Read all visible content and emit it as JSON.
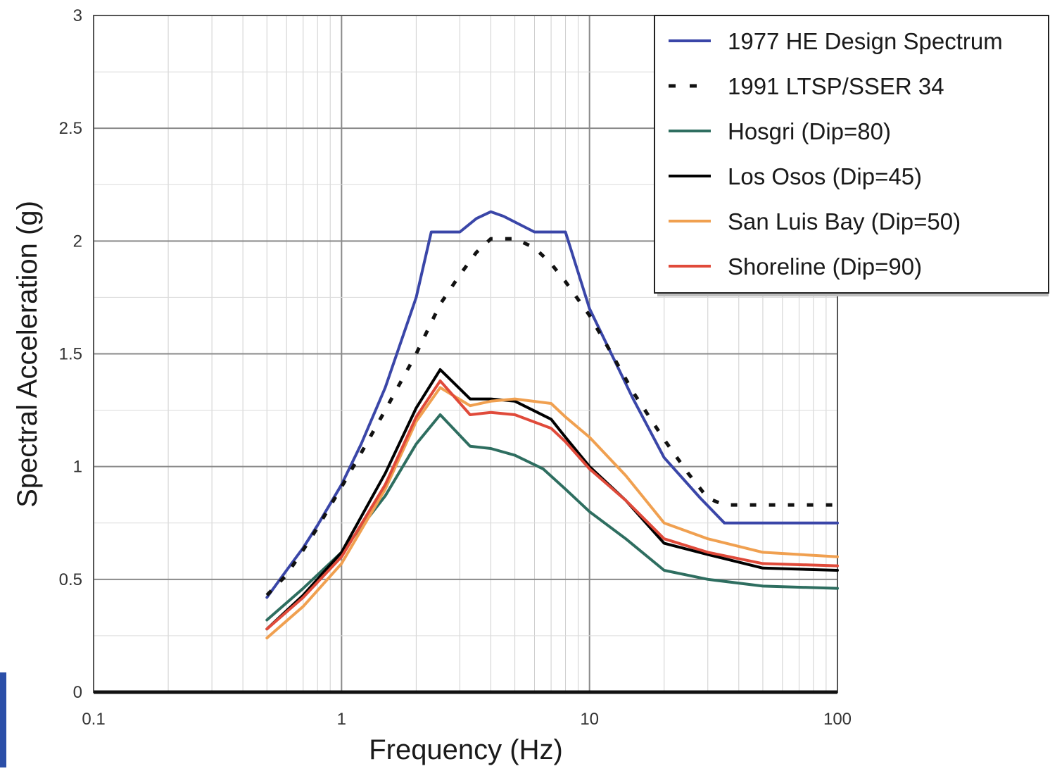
{
  "chart_data": {
    "type": "line",
    "xlabel": "Frequency (Hz)",
    "ylabel": "Spectral Acceleration (g)",
    "xscale": "log",
    "xlim": [
      0.1,
      100
    ],
    "ylim": [
      0,
      3
    ],
    "x_ticks": [
      {
        "value": 0.1,
        "label": "0.1"
      },
      {
        "value": 1,
        "label": "1"
      },
      {
        "value": 10,
        "label": "10"
      },
      {
        "value": 100,
        "label": "100"
      }
    ],
    "y_ticks": [
      {
        "value": 0,
        "label": "0"
      },
      {
        "value": 0.5,
        "label": "0.5"
      },
      {
        "value": 1,
        "label": "1"
      },
      {
        "value": 1.5,
        "label": "1.5"
      },
      {
        "value": 2,
        "label": "2"
      },
      {
        "value": 2.5,
        "label": "2.5"
      },
      {
        "value": 3,
        "label": "3"
      }
    ],
    "grid": true,
    "legend_position": "top-right",
    "series": [
      {
        "name": "1977 HE Design Spectrum",
        "color": "#3a46a8",
        "dash": "solid",
        "points": [
          [
            0.5,
            0.42
          ],
          [
            0.6,
            0.54
          ],
          [
            0.7,
            0.64
          ],
          [
            0.8,
            0.74
          ],
          [
            1.0,
            0.92
          ],
          [
            1.2,
            1.1
          ],
          [
            1.5,
            1.35
          ],
          [
            2.0,
            1.75
          ],
          [
            2.3,
            2.04
          ],
          [
            3.0,
            2.04
          ],
          [
            3.5,
            2.1
          ],
          [
            4.0,
            2.13
          ],
          [
            4.5,
            2.11
          ],
          [
            6.0,
            2.04
          ],
          [
            8.0,
            2.04
          ],
          [
            10.0,
            1.7
          ],
          [
            15.0,
            1.3
          ],
          [
            20.0,
            1.04
          ],
          [
            28.0,
            0.86
          ],
          [
            35.0,
            0.75
          ],
          [
            100.0,
            0.75
          ]
        ]
      },
      {
        "name": "1991 LTSP/SSER 34",
        "color": "#111111",
        "dash": "dotted",
        "points": [
          [
            0.5,
            0.43
          ],
          [
            0.6,
            0.52
          ],
          [
            0.7,
            0.63
          ],
          [
            0.8,
            0.73
          ],
          [
            1.0,
            0.91
          ],
          [
            1.2,
            1.06
          ],
          [
            1.5,
            1.25
          ],
          [
            2.0,
            1.5
          ],
          [
            2.5,
            1.72
          ],
          [
            3.0,
            1.85
          ],
          [
            3.5,
            1.95
          ],
          [
            4.0,
            2.01
          ],
          [
            5.0,
            2.01
          ],
          [
            6.0,
            1.97
          ],
          [
            7.0,
            1.9
          ],
          [
            8.0,
            1.82
          ],
          [
            10.0,
            1.67
          ],
          [
            12.0,
            1.52
          ],
          [
            15.0,
            1.33
          ],
          [
            20.0,
            1.12
          ],
          [
            25.0,
            0.97
          ],
          [
            30.0,
            0.86
          ],
          [
            35.0,
            0.83
          ],
          [
            100.0,
            0.83
          ]
        ]
      },
      {
        "name": "Hosgri (Dip=80)",
        "color": "#2e6e60",
        "dash": "solid",
        "points": [
          [
            0.5,
            0.32
          ],
          [
            0.7,
            0.46
          ],
          [
            1.0,
            0.62
          ],
          [
            1.5,
            0.87
          ],
          [
            2.0,
            1.1
          ],
          [
            2.5,
            1.23
          ],
          [
            3.3,
            1.09
          ],
          [
            4.0,
            1.08
          ],
          [
            5.0,
            1.05
          ],
          [
            6.5,
            0.99
          ],
          [
            8.0,
            0.9
          ],
          [
            10.0,
            0.8
          ],
          [
            14.0,
            0.68
          ],
          [
            20.0,
            0.54
          ],
          [
            30.0,
            0.5
          ],
          [
            50.0,
            0.47
          ],
          [
            100.0,
            0.46
          ]
        ]
      },
      {
        "name": "Los Osos (Dip=45)",
        "color": "#000000",
        "dash": "solid",
        "points": [
          [
            0.5,
            0.28
          ],
          [
            0.7,
            0.43
          ],
          [
            1.0,
            0.62
          ],
          [
            1.5,
            0.97
          ],
          [
            2.0,
            1.26
          ],
          [
            2.5,
            1.43
          ],
          [
            3.3,
            1.3
          ],
          [
            4.0,
            1.3
          ],
          [
            5.0,
            1.29
          ],
          [
            7.0,
            1.21
          ],
          [
            8.0,
            1.13
          ],
          [
            10.0,
            1.0
          ],
          [
            14.0,
            0.85
          ],
          [
            20.0,
            0.66
          ],
          [
            30.0,
            0.61
          ],
          [
            50.0,
            0.55
          ],
          [
            100.0,
            0.54
          ]
        ]
      },
      {
        "name": "San Luis Bay (Dip=50)",
        "color": "#f0a050",
        "dash": "solid",
        "points": [
          [
            0.5,
            0.24
          ],
          [
            0.7,
            0.38
          ],
          [
            1.0,
            0.57
          ],
          [
            1.5,
            0.9
          ],
          [
            2.0,
            1.2
          ],
          [
            2.5,
            1.35
          ],
          [
            3.3,
            1.27
          ],
          [
            4.0,
            1.29
          ],
          [
            5.0,
            1.3
          ],
          [
            7.0,
            1.28
          ],
          [
            8.0,
            1.22
          ],
          [
            10.0,
            1.13
          ],
          [
            14.0,
            0.96
          ],
          [
            20.0,
            0.75
          ],
          [
            30.0,
            0.68
          ],
          [
            50.0,
            0.62
          ],
          [
            100.0,
            0.6
          ]
        ]
      },
      {
        "name": "Shoreline (Dip=90)",
        "color": "#e04a3a",
        "dash": "solid",
        "points": [
          [
            0.5,
            0.28
          ],
          [
            0.7,
            0.42
          ],
          [
            1.0,
            0.6
          ],
          [
            1.5,
            0.92
          ],
          [
            2.0,
            1.22
          ],
          [
            2.5,
            1.38
          ],
          [
            3.3,
            1.23
          ],
          [
            4.0,
            1.24
          ],
          [
            5.0,
            1.23
          ],
          [
            7.0,
            1.17
          ],
          [
            8.0,
            1.11
          ],
          [
            10.0,
            0.99
          ],
          [
            14.0,
            0.85
          ],
          [
            20.0,
            0.68
          ],
          [
            30.0,
            0.62
          ],
          [
            50.0,
            0.57
          ],
          [
            100.0,
            0.56
          ]
        ]
      }
    ]
  }
}
